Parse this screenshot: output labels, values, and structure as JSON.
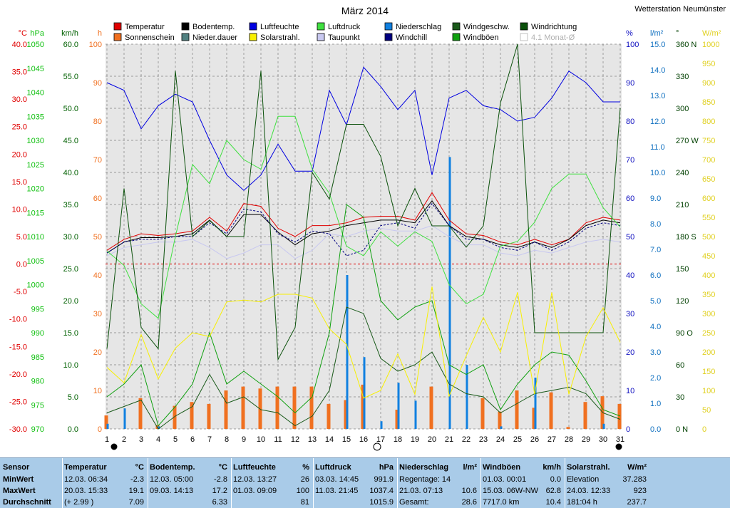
{
  "header": {
    "title": "März 2014",
    "station": "Wetterstation Neumünster"
  },
  "axes": {
    "left": [
      {
        "unit": "°C",
        "color": "#e00000",
        "ticks": [
          "40.0",
          "35.0",
          "30.0",
          "25.0",
          "20.0",
          "15.0",
          "10.0",
          "5.0",
          "0.0",
          "-5.0",
          "-10.0",
          "-15.0",
          "-20.0",
          "-25.0",
          "-30.0"
        ]
      },
      {
        "unit": "hPa",
        "color": "#10c010",
        "ticks": [
          "1050",
          "1045",
          "1040",
          "1035",
          "1030",
          "1025",
          "1020",
          "1015",
          "1010",
          "1005",
          "1000",
          "995",
          "990",
          "985",
          "980",
          "975",
          "970"
        ]
      },
      {
        "unit": "km/h",
        "color": "#006000",
        "ticks": [
          "60.0",
          "55.0",
          "50.0",
          "45.0",
          "40.0",
          "35.0",
          "30.0",
          "25.0",
          "20.0",
          "15.0",
          "10.0",
          "5.0",
          "0.0"
        ]
      },
      {
        "unit": "h",
        "color": "#f07020",
        "ticks": [
          "100",
          "90",
          "80",
          "70",
          "60",
          "50",
          "40",
          "30",
          "20",
          "10",
          "0"
        ]
      }
    ],
    "right": [
      {
        "unit": "%",
        "color": "#1010c0",
        "ticks": [
          "100",
          "90",
          "80",
          "70",
          "60",
          "50",
          "40",
          "30",
          "20",
          "10",
          "0"
        ]
      },
      {
        "unit": "l/m²",
        "color": "#1070c0",
        "ticks": [
          "15.0",
          "14.0",
          "13.0",
          "12.0",
          "11.0",
          "10.0",
          "9.0",
          "8.0",
          "7.0",
          "6.0",
          "5.0",
          "4.0",
          "3.0",
          "2.0",
          "1.0",
          "0.0"
        ]
      },
      {
        "unit": "°",
        "color": "#004000",
        "ticks": [
          "360 N",
          "330",
          "300",
          "270 W",
          "240",
          "210",
          "180 S",
          "150",
          "120",
          "90 O",
          "60",
          "30",
          "0 N"
        ]
      },
      {
        "unit": "W/m²",
        "color": "#e0d020",
        "ticks": [
          "1000",
          "950",
          "900",
          "850",
          "800",
          "750",
          "700",
          "650",
          "600",
          "550",
          "500",
          "450",
          "400",
          "350",
          "300",
          "250",
          "200",
          "150",
          "100",
          "50",
          "0"
        ]
      }
    ],
    "x_ticks": [
      "1",
      "2",
      "3",
      "4",
      "5",
      "6",
      "7",
      "8",
      "9",
      "10",
      "11",
      "12",
      "13",
      "14",
      "15",
      "16",
      "17",
      "18",
      "19",
      "20",
      "21",
      "22",
      "23",
      "24",
      "25",
      "26",
      "27",
      "28",
      "29",
      "30",
      "31"
    ]
  },
  "legend": [
    {
      "label": "Temperatur",
      "color": "#e00000"
    },
    {
      "label": "Bodentemp.",
      "color": "#000000"
    },
    {
      "label": "Luftfeuchte",
      "color": "#0000e0"
    },
    {
      "label": "Luftdruck",
      "color": "#40e040"
    },
    {
      "label": "Niederschlag",
      "color": "#1080e0"
    },
    {
      "label": "Windgeschw.",
      "color": "#1a5a1a"
    },
    {
      "label": "Windrichtung",
      "color": "#0a500a"
    },
    {
      "label": "Sonnenschein",
      "color": "#f07020"
    },
    {
      "label": "Nieder.dauer",
      "color": "#508080"
    },
    {
      "label": "Solarstrahl.",
      "color": "#f8f000"
    },
    {
      "label": "Taupunkt",
      "color": "#c8c8f0"
    },
    {
      "label": "Windchill",
      "color": "#000080"
    },
    {
      "label": "Windböen",
      "color": "#10a010"
    },
    {
      "label": "4.1 Monat-Ø",
      "color": "#ffffff"
    }
  ],
  "chart_data": {
    "type": "line",
    "x": [
      1,
      2,
      3,
      4,
      5,
      6,
      7,
      8,
      9,
      10,
      11,
      12,
      13,
      14,
      15,
      16,
      17,
      18,
      19,
      20,
      21,
      22,
      23,
      24,
      25,
      26,
      27,
      28,
      29,
      30,
      31
    ],
    "series": [
      {
        "name": "Temperatur",
        "color": "#e00000",
        "axis": "°C",
        "values": [
          2.5,
          4.5,
          5.5,
          5.2,
          5.5,
          6.0,
          8.5,
          6.0,
          11.0,
          10.5,
          6.5,
          5.0,
          7.0,
          7.0,
          7.5,
          8.5,
          8.7,
          8.7,
          8.0,
          13.0,
          8.0,
          5.5,
          5.2,
          4.0,
          3.5,
          4.5,
          3.5,
          4.5,
          7.5,
          8.5,
          8.0
        ]
      },
      {
        "name": "Bodentemp.",
        "color": "#000000",
        "axis": "°C",
        "values": [
          2.0,
          4.0,
          4.8,
          4.8,
          5.0,
          5.5,
          8.0,
          5.0,
          9.0,
          9.0,
          5.8,
          3.5,
          5.5,
          6.0,
          7.0,
          7.5,
          8.0,
          8.0,
          7.5,
          11.5,
          7.0,
          5.0,
          4.5,
          3.5,
          3.0,
          4.0,
          3.0,
          4.5,
          7.0,
          8.0,
          7.5
        ]
      },
      {
        "name": "Taupunkt",
        "color": "#c8c8f0",
        "axis": "°C",
        "values": [
          1.5,
          3.0,
          3.5,
          4.0,
          4.0,
          4.5,
          3.0,
          1.0,
          2.0,
          3.5,
          3.5,
          1.0,
          2.5,
          5.5,
          5.0,
          6.0,
          6.5,
          6.0,
          6.0,
          7.0,
          5.0,
          3.5,
          3.5,
          2.0,
          1.5,
          2.5,
          2.0,
          3.0,
          4.0,
          4.5,
          4.0
        ]
      },
      {
        "name": "Windchill",
        "color": "#000080",
        "axis": "°C",
        "values": [
          2.0,
          4.0,
          4.5,
          4.5,
          5.0,
          5.0,
          7.5,
          5.5,
          10.0,
          9.5,
          5.5,
          4.0,
          6.0,
          5.5,
          1.5,
          2.5,
          7.0,
          7.5,
          6.5,
          11.0,
          7.0,
          4.5,
          4.5,
          3.0,
          2.5,
          4.0,
          2.5,
          4.0,
          6.5,
          7.5,
          7.0
        ]
      },
      {
        "name": "Luftfeuchte",
        "color": "#0000e0",
        "axis": "%",
        "values": [
          90,
          88,
          78,
          84,
          87,
          85,
          75,
          66,
          62,
          66,
          74,
          67,
          67,
          88,
          79,
          94,
          89,
          83,
          88,
          66,
          86,
          88,
          84,
          83,
          80,
          81,
          86,
          93,
          90,
          85,
          85
        ]
      },
      {
        "name": "Luftdruck",
        "color": "#40e040",
        "axis": "hPa",
        "values": [
          1007,
          1004,
          996,
          993,
          1010,
          1025,
          1021,
          1030,
          1026,
          1024,
          1035,
          1035,
          1024,
          1019,
          1008,
          1006,
          1011,
          1008,
          1011,
          1009,
          1000,
          996,
          998,
          1008,
          1009,
          1013,
          1020,
          1023,
          1023,
          1016,
          1012
        ]
      },
      {
        "name": "Windgeschw.",
        "color": "#1a5a1a",
        "axis": "km/h",
        "values": [
          2.5,
          3.5,
          4.5,
          0.0,
          2.0,
          3.5,
          8.5,
          4.0,
          5.0,
          3.0,
          2.5,
          0.5,
          2.0,
          6.0,
          19.0,
          18.0,
          11.0,
          9.0,
          10.0,
          12.0,
          7.0,
          5.5,
          5.0,
          2.5,
          4.0,
          5.5,
          6.0,
          6.5,
          5.5,
          2.5,
          1.5
        ]
      },
      {
        "name": "Windböen",
        "color": "#10a010",
        "axis": "km/h",
        "values": [
          5.0,
          7.0,
          10.0,
          0.5,
          3.5,
          7.0,
          15.0,
          7.0,
          9.0,
          7.0,
          5.0,
          2.5,
          5.0,
          15.0,
          35.0,
          33.0,
          20.0,
          17.0,
          19.0,
          20.0,
          10.0,
          8.5,
          10.0,
          3.0,
          7.0,
          10.0,
          12.0,
          11.5,
          7.5,
          3.0,
          2.0
        ]
      },
      {
        "name": "Windrichtung",
        "color": "#0a500a",
        "axis": "°",
        "values": [
          75,
          225,
          95,
          75,
          335,
          180,
          195,
          180,
          180,
          335,
          65,
          95,
          240,
          215,
          285,
          285,
          255,
          190,
          225,
          190,
          190,
          170,
          190,
          305,
          360,
          90,
          90,
          90,
          90,
          90,
          300
        ]
      },
      {
        "name": "Solarstrahl.",
        "color": "#f8f000",
        "axis": "W/m²",
        "values": [
          160,
          120,
          245,
          130,
          210,
          250,
          240,
          330,
          335,
          330,
          350,
          350,
          340,
          260,
          220,
          80,
          100,
          195,
          90,
          370,
          85,
          190,
          290,
          200,
          355,
          90,
          355,
          90,
          240,
          315,
          225
        ]
      }
    ],
    "bars": [
      {
        "name": "Sonnenschein",
        "color": "#f07020",
        "axis": "h",
        "values": [
          3.5,
          0,
          8,
          1,
          6,
          7,
          6.5,
          10,
          11,
          10.5,
          11,
          11,
          11,
          6.5,
          7.5,
          11.5,
          0,
          5,
          0,
          11,
          0,
          0,
          8,
          4.5,
          10,
          5.5,
          9.5,
          0.5,
          7,
          8.5,
          6.5
        ]
      },
      {
        "name": "Niederschlag",
        "color": "#1080e0",
        "axis": "l/m²",
        "values": [
          0.2,
          0.8,
          0,
          0.1,
          0,
          0,
          0,
          0,
          0,
          0,
          0,
          0,
          0,
          0,
          6.0,
          2.8,
          0.3,
          1.8,
          1.1,
          0,
          10.6,
          2.5,
          0,
          0.1,
          0,
          2.0,
          0,
          0,
          0,
          0.2,
          0
        ]
      }
    ],
    "xlim": [
      1,
      31
    ]
  },
  "stats": {
    "columns": [
      {
        "title": "Sensor",
        "unit": "",
        "rows": [
          "MinWert",
          "MaxWert",
          "Durchschnitt"
        ]
      },
      {
        "title": "Temperatur",
        "unit": "°C",
        "rows": [
          [
            "12.03.  06:34",
            "-2.3"
          ],
          [
            "20.03.  15:33",
            "19.1"
          ],
          [
            "(+ 2.99 )",
            "7.09"
          ]
        ]
      },
      {
        "title": "Bodentemp.",
        "unit": "°C",
        "rows": [
          [
            "12.03.  05:00",
            "-2.8"
          ],
          [
            "09.03.  14:13",
            "17.2"
          ],
          [
            "",
            "6.33"
          ]
        ]
      },
      {
        "title": "Luftfeuchte",
        "unit": "%",
        "rows": [
          [
            "12.03.  13:27",
            "26"
          ],
          [
            "01.03.  09:09",
            "100"
          ],
          [
            "",
            "81"
          ]
        ]
      },
      {
        "title": "Luftdruck",
        "unit": "hPa",
        "rows": [
          [
            "03.03.  14:45",
            "991.9"
          ],
          [
            "11.03.  21:45",
            "1037.4"
          ],
          [
            "",
            "1015.9"
          ]
        ]
      },
      {
        "title": "Niederschlag",
        "unit": "l/m²",
        "rows": [
          [
            "Regentage: 14",
            ""
          ],
          [
            "21.03.  07:13",
            "10.6"
          ],
          [
            "Gesamt:",
            "28.6"
          ]
        ]
      },
      {
        "title": "Windböen",
        "unit": "km/h",
        "rows": [
          [
            "01.03.  00:01",
            "0.0"
          ],
          [
            "15.03.  06W-NW",
            "62.8"
          ],
          [
            "7717.0 km",
            "10.4"
          ]
        ]
      },
      {
        "title": "Solarstrahl.",
        "unit": "W/m²",
        "rows": [
          [
            "Elevation",
            "37.283"
          ],
          [
            "24.03.  12:33",
            "923"
          ],
          [
            "181:04 h",
            "237.7"
          ]
        ]
      }
    ]
  }
}
